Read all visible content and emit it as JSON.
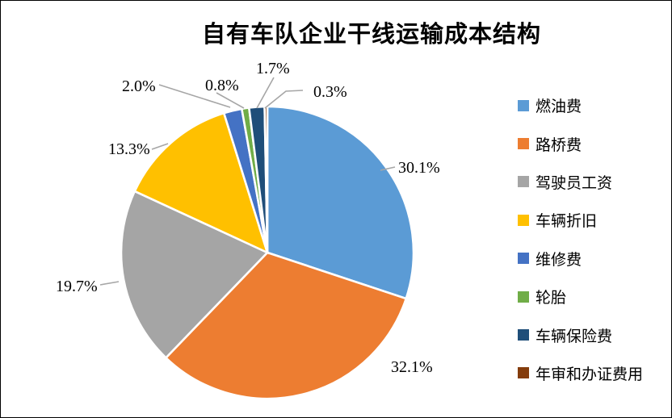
{
  "chart_data": {
    "type": "pie",
    "title": "自有车队企业干线运输成本结构",
    "legend_position": "right",
    "start_angle_deg": 0,
    "direction": "clockwise",
    "slice_border_color": "#FFFFFF",
    "leader_line_color": "#A6A6A6",
    "slices": [
      {
        "label": "燃油费",
        "value": 30.1,
        "pct_label": "30.1%",
        "color": "#5B9BD5"
      },
      {
        "label": "路桥费",
        "value": 32.1,
        "pct_label": "32.1%",
        "color": "#ED7D31"
      },
      {
        "label": "驾驶员工资",
        "value": 19.7,
        "pct_label": "19.7%",
        "color": "#A5A5A5"
      },
      {
        "label": "车辆折旧",
        "value": 13.3,
        "pct_label": "13.3%",
        "color": "#FFC000"
      },
      {
        "label": "维修费",
        "value": 2.0,
        "pct_label": "2.0%",
        "color": "#4472C4"
      },
      {
        "label": "轮胎",
        "value": 0.8,
        "pct_label": "0.8%",
        "color": "#70AD47"
      },
      {
        "label": "车辆保险费",
        "value": 1.7,
        "pct_label": "1.7%",
        "color": "#1F4E79"
      },
      {
        "label": "年审和办证费用",
        "value": 0.3,
        "pct_label": "0.3%",
        "color": "#843C0C"
      }
    ]
  }
}
